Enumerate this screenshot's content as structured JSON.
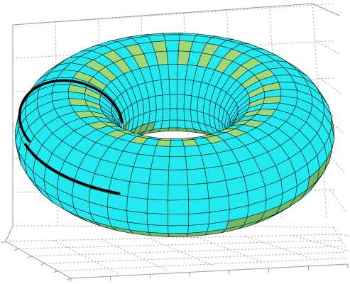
{
  "figure": {
    "surface_color": "#22e8f0",
    "mesh_color": "#0a1a1a",
    "highlight_color": "#9ed878",
    "shadow_color": "#6fb86a",
    "thick_line_color": "#000000",
    "grid_line_color": "#a0a0a0",
    "axes_line_color": "#9a9a9a",
    "major_radius": 1.0,
    "minor_radius": 0.5,
    "mesh_u_segments": 48,
    "mesh_v_segments": 20
  }
}
